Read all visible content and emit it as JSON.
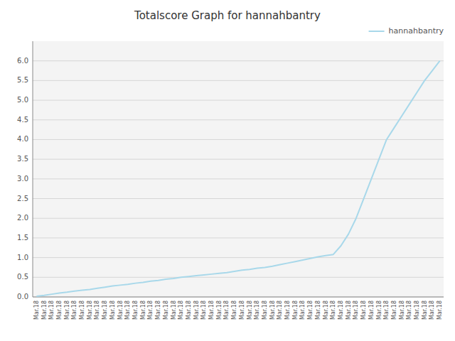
{
  "chart_data": {
    "type": "line",
    "title": "Totalscore Graph for hannahbantry",
    "categories": [
      "Mar.18",
      "Mar.18",
      "Mar.18",
      "Mar.18",
      "Mar.18",
      "Mar.18",
      "Mar.18",
      "Mar.18",
      "Mar.18",
      "Mar.18",
      "Mar.18",
      "Mar.18",
      "Mar.18",
      "Mar.18",
      "Mar.18",
      "Mar.18",
      "Mar.18",
      "Mar.18",
      "Mar.18",
      "Mar.18",
      "Mar.18",
      "Mar.18",
      "Mar.18",
      "Mar.18",
      "Mar.18",
      "Mar.18",
      "Mar.18",
      "Mar.18",
      "Mar.18",
      "Mar.18",
      "Mar.18",
      "Mar.18",
      "Mar.18",
      "Mar.18",
      "Mar.18",
      "Mar.18",
      "Mar.18",
      "Mar.18",
      "Mar.18",
      "Mar.18",
      "Mar.18",
      "Mar.18",
      "Mar.18",
      "Mar.18",
      "Mar.18",
      "Mar.18",
      "Mar.18",
      "Mar.18",
      "Mar.18",
      "Mar.18",
      "Mar.18",
      "Mar.18",
      "Mar.18",
      "Mar.18"
    ],
    "series": [
      {
        "name": "hannahbantry",
        "color": "#a8d8ea",
        "values": [
          0.02,
          0.04,
          0.07,
          0.1,
          0.12,
          0.15,
          0.17,
          0.19,
          0.22,
          0.25,
          0.28,
          0.3,
          0.32,
          0.35,
          0.37,
          0.4,
          0.42,
          0.45,
          0.47,
          0.5,
          0.52,
          0.54,
          0.56,
          0.58,
          0.6,
          0.62,
          0.65,
          0.68,
          0.7,
          0.73,
          0.75,
          0.78,
          0.82,
          0.86,
          0.9,
          0.94,
          0.98,
          1.02,
          1.05,
          1.08,
          1.3,
          1.6,
          2.0,
          2.5,
          3.0,
          3.5,
          4.0,
          4.3,
          4.6,
          4.9,
          5.2,
          5.5,
          5.75,
          6.0
        ]
      }
    ],
    "ylim": [
      0.0,
      6.5
    ],
    "yticks": [
      {
        "value": 0.0,
        "label": "0.0"
      },
      0.5,
      {
        "value": 1.0,
        "label": "1.0"
      },
      1.5,
      {
        "value": 2.0,
        "label": "2.0"
      },
      2.5,
      {
        "value": 3.0,
        "label": "3.0"
      },
      3.5,
      {
        "value": 4.0,
        "label": "4.0"
      },
      4.5,
      {
        "value": 5.0,
        "label": "5.0"
      },
      5.5,
      {
        "value": 6.0,
        "label": "6.0"
      }
    ],
    "grid": true,
    "legend": "upper right"
  }
}
